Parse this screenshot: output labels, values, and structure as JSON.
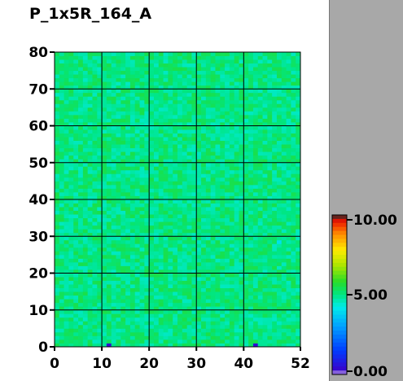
{
  "title": "P_1x5R_164_A",
  "chart_data": {
    "type": "heatmap",
    "title": "P_1x5R_164_A",
    "xlabel": "",
    "ylabel": "",
    "xlim": [
      0,
      52
    ],
    "ylim": [
      0,
      80
    ],
    "x_ticks": [
      0,
      10,
      20,
      30,
      40,
      52
    ],
    "y_ticks": [
      0,
      10,
      20,
      30,
      40,
      50,
      60,
      70,
      80
    ],
    "x_tick_labels": [
      "0",
      "10",
      "20",
      "30",
      "40",
      "52"
    ],
    "y_tick_labels": [
      "0",
      "10",
      "20",
      "30",
      "40",
      "50",
      "60",
      "70",
      "80"
    ],
    "grid": true,
    "typical_value": 5.0,
    "value_range_observed": [
      4.5,
      5.5
    ],
    "outliers": [
      {
        "x": 11,
        "y": 0,
        "value": 0.5
      },
      {
        "x": 42,
        "y": 0,
        "value": 0.5
      },
      {
        "x": 47,
        "y": 28,
        "value": 4.0
      }
    ],
    "colorbar": {
      "min": 0.0,
      "max": 10.0,
      "tick_labels": [
        "10.00",
        "5.00",
        "0.00"
      ],
      "tick_values": [
        10.0,
        5.0,
        0.0
      ],
      "placement": "right"
    }
  }
}
